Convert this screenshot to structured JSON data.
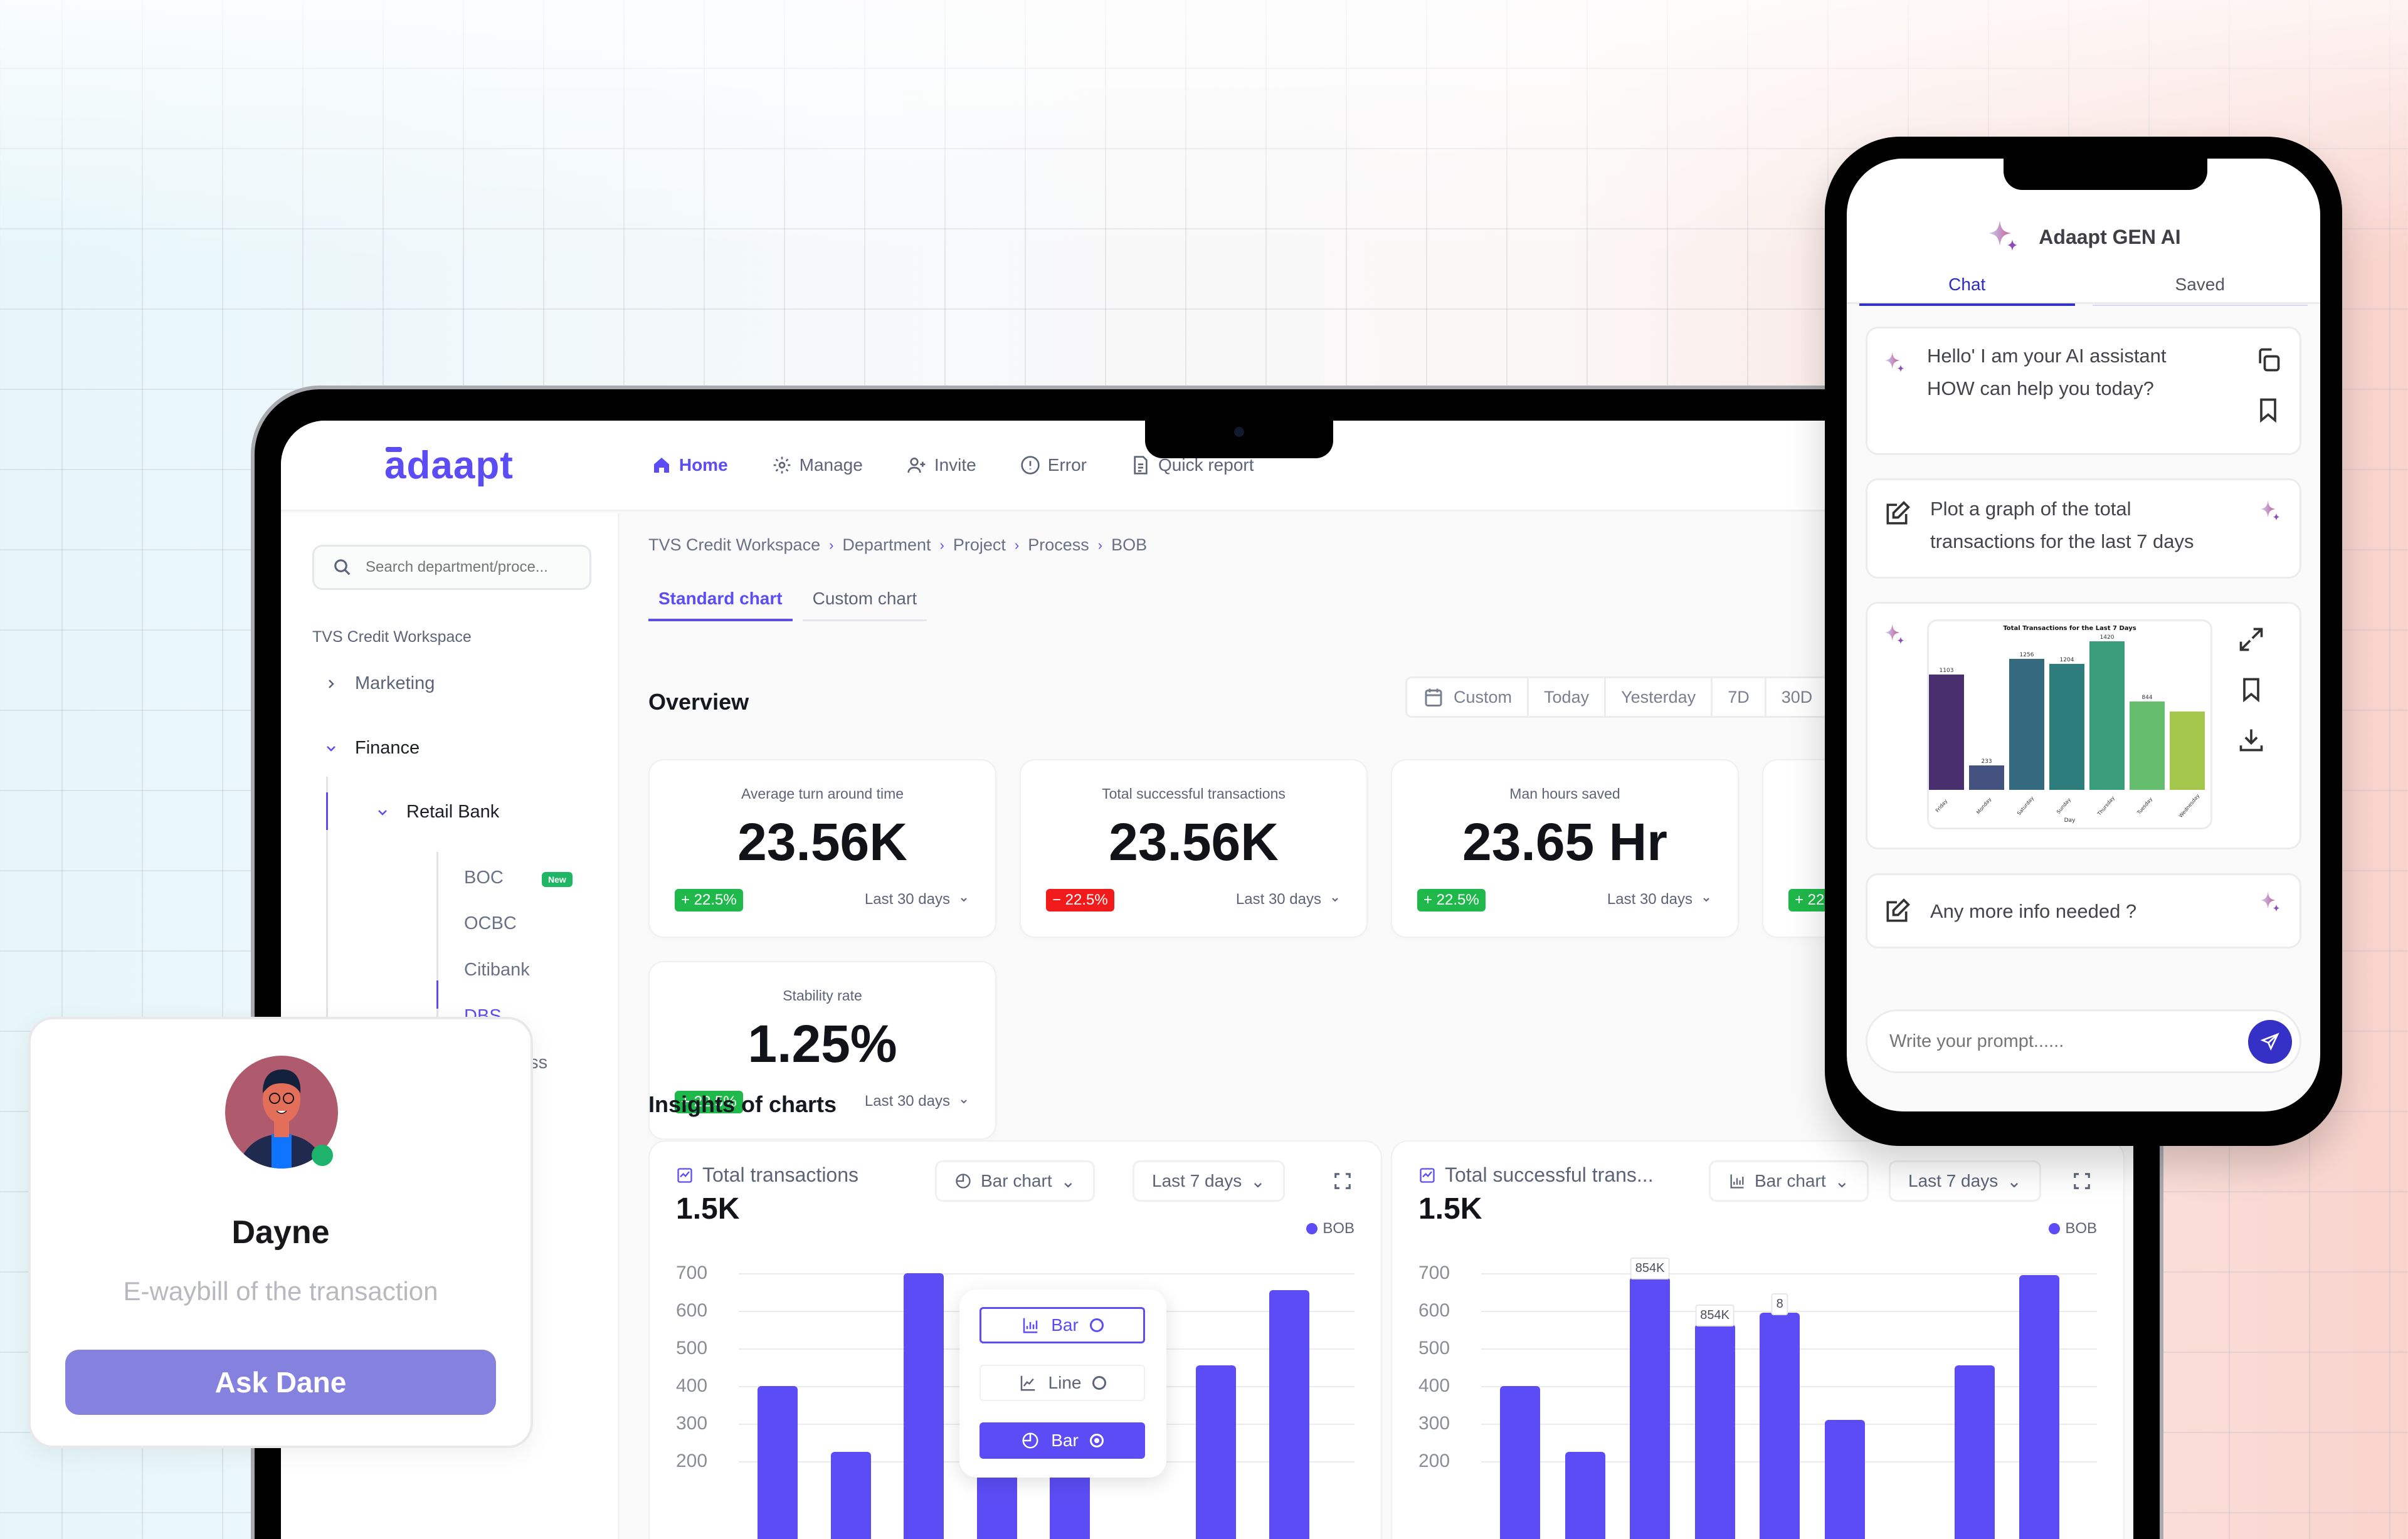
{
  "app": {
    "logo": "adaapt",
    "nav": [
      {
        "label": "Home",
        "icon": "home-icon",
        "active": true
      },
      {
        "label": "Manage",
        "icon": "gear-icon"
      },
      {
        "label": "Invite",
        "icon": "user-plus-icon"
      },
      {
        "label": "Error",
        "icon": "alert-circle-icon"
      },
      {
        "label": "Quick report",
        "icon": "document-icon"
      }
    ]
  },
  "sidebar": {
    "search_placeholder": "Search department/proce...",
    "workspace": "TVS Credit Workspace",
    "tree": {
      "marketing": "Marketing",
      "finance": "Finance",
      "retail_bank": "Retail Bank",
      "leaves": [
        "BOC",
        "OCBC",
        "Citibank",
        "DBS"
      ],
      "new_badge": "New",
      "partial_item": "ess"
    }
  },
  "breadcrumb": [
    "TVS Credit Workspace",
    "Department",
    "Project",
    "Process",
    "BOB"
  ],
  "tabs": [
    "Standard chart",
    "Custom chart"
  ],
  "overview": {
    "title": "Overview",
    "ranges": [
      "Custom",
      "Today",
      "Yesterday",
      "7D",
      "30D"
    ],
    "cards": [
      {
        "label": "Average turn around time",
        "value": "23.56K",
        "delta": "+ 22.5%",
        "trend": "up",
        "period": "Last 30 days"
      },
      {
        "label": "Total successful transactions",
        "value": "23.56K",
        "delta": "− 22.5%",
        "trend": "down",
        "period": "Last 30 days"
      },
      {
        "label": "Man hours saved",
        "value": "23.65 Hr",
        "delta": "+ 22.5%",
        "trend": "up",
        "period": "Last 30 days"
      },
      {
        "label": "",
        "value": "",
        "delta": "+ 22.",
        "trend": "up",
        "period": ""
      },
      {
        "label": "Stability rate",
        "value": "1.25%",
        "delta": "+ 22.5%",
        "trend": "up",
        "period": "Last 30 days"
      }
    ]
  },
  "insights": {
    "title": "Insights of charts",
    "charts": [
      {
        "title": "Total transactions",
        "value": "1.5K",
        "type_select": "Bar chart",
        "period_select": "Last 7 days",
        "legend": "BOB"
      },
      {
        "title": "Total successful trans...",
        "value": "1.5K",
        "type_select": "Bar chart",
        "period_select": "Last 7 days",
        "legend": "BOB",
        "tooltips": [
          "854K",
          "854K",
          "8"
        ]
      }
    ],
    "dropdown": [
      {
        "label": "Bar",
        "style": "outline"
      },
      {
        "label": "Line",
        "style": "plain"
      },
      {
        "label": "Bar",
        "style": "filled",
        "selected": true
      }
    ]
  },
  "chart_data": [
    {
      "type": "bar",
      "title": "Total transactions",
      "ylim": [
        200,
        700
      ],
      "yticks": [
        700,
        600,
        500,
        400,
        300,
        200
      ],
      "legend": [
        "BOB"
      ],
      "color": "#5b4cf5",
      "values": [
        400,
        225,
        700,
        590,
        310,
        null,
        455,
        655
      ]
    },
    {
      "type": "bar",
      "title": "Total successful trans...",
      "ylim": [
        200,
        700
      ],
      "yticks": [
        700,
        600,
        500,
        400,
        300,
        200
      ],
      "legend": [
        "BOB"
      ],
      "color": "#5b4cf5",
      "values": [
        400,
        225,
        690,
        565,
        595,
        310,
        null,
        455,
        695
      ],
      "annotations": [
        "854K",
        "854K",
        "8"
      ]
    },
    {
      "type": "bar",
      "title": "Total Transactions for the Last 7 Days",
      "xlabel": "Day",
      "categories": [
        "Friday",
        "Monday",
        "Saturday",
        "Sunday",
        "Thursday",
        "Tuesday",
        "Wednesday"
      ],
      "values": [
        1103,
        233,
        1256,
        1204,
        1420,
        844,
        750
      ],
      "colors": [
        "#48306e",
        "#43527e",
        "#35697f",
        "#2c7d7b",
        "#3a9d7b",
        "#66bd6e",
        "#a4c64a"
      ]
    }
  ],
  "assistant": {
    "title": "Adaapt GEN AI",
    "tabs": [
      "Chat",
      "Saved"
    ],
    "messages": [
      {
        "role": "ai",
        "text": [
          "Hello' I am your AI assistant",
          "HOW can help you today?"
        ]
      },
      {
        "role": "user",
        "text": [
          "Plot a graph of the total",
          "transactions for the last 7 days"
        ]
      },
      {
        "role": "ai-chart"
      },
      {
        "role": "user",
        "text": [
          "Any more info needed ?"
        ]
      }
    ],
    "prompt_placeholder": "Write your prompt......"
  },
  "profile": {
    "name": "Dayne",
    "subtitle": "E-waybill of the transaction",
    "button": "Ask Dane"
  }
}
